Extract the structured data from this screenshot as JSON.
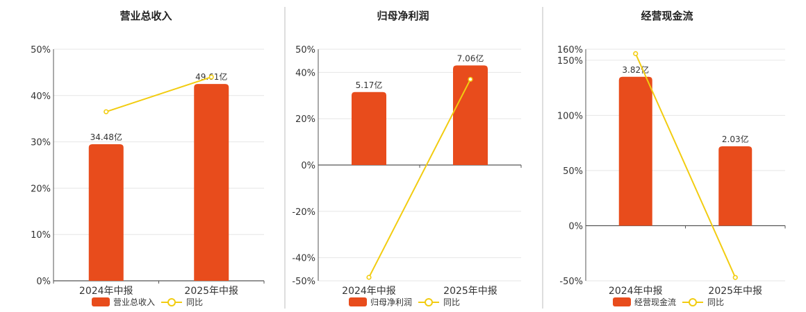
{
  "colors": {
    "bar": "#e84c1c",
    "line": "#f2cc10",
    "grid": "#e6e6e6",
    "axis": "#555555",
    "divider": "#bdbdbd"
  },
  "chart_data": [
    {
      "type": "bar+line",
      "title": "营业总收入",
      "categories": [
        "2024年中报",
        "2025年中报"
      ],
      "bar_labels": [
        "34.48亿",
        "49.61亿"
      ],
      "series": [
        {
          "name": "营业总收入",
          "type": "bar",
          "values": [
            29.5,
            42.5
          ]
        },
        {
          "name": "同比",
          "type": "line",
          "values": [
            36.5,
            44.0
          ]
        }
      ],
      "ylim": [
        0,
        50
      ],
      "yticks": [
        0,
        10,
        20,
        30,
        40,
        50
      ],
      "ytick_labels": [
        "0%",
        "10%",
        "20%",
        "30%",
        "40%",
        "50%"
      ],
      "grid": true,
      "legend": "bottom"
    },
    {
      "type": "bar+line",
      "title": "归母净利润",
      "categories": [
        "2024年中报",
        "2025年中报"
      ],
      "bar_labels": [
        "5.17亿",
        "7.06亿"
      ],
      "series": [
        {
          "name": "归母净利润",
          "type": "bar",
          "values": [
            31.5,
            43.0
          ]
        },
        {
          "name": "同比",
          "type": "line",
          "values": [
            -48.5,
            37.0
          ]
        }
      ],
      "ylim": [
        -50,
        50
      ],
      "yticks": [
        -50,
        -40,
        -20,
        0,
        20,
        40,
        50
      ],
      "ytick_labels": [
        "-50%",
        "-40%",
        "-20%",
        "0%",
        "20%",
        "40%",
        "50%"
      ],
      "grid": true,
      "legend": "bottom"
    },
    {
      "type": "bar+line",
      "title": "经营现金流",
      "categories": [
        "2024年中报",
        "2025年中报"
      ],
      "bar_labels": [
        "3.82亿",
        "2.03亿"
      ],
      "series": [
        {
          "name": "经营现金流",
          "type": "bar",
          "values": [
            135,
            72
          ]
        },
        {
          "name": "同比",
          "type": "line",
          "values": [
            156,
            -47
          ]
        }
      ],
      "ylim": [
        -50,
        160
      ],
      "yticks": [
        -50,
        0,
        50,
        100,
        150,
        160
      ],
      "ytick_labels": [
        "-50%",
        "0%",
        "50%",
        "100%",
        "150%",
        "160%"
      ],
      "grid": true,
      "legend": "bottom"
    }
  ]
}
